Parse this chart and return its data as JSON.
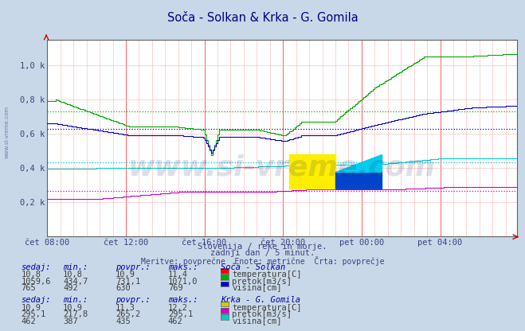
{
  "title": "Soča - Solkan & Krka - G. Gomila",
  "bg_color": "#c8d8e8",
  "plot_bg": "#ffffff",
  "xlabel_color": "#404080",
  "ylabel_color": "#404080",
  "grid_color_minor": "#ffb0b0",
  "grid_color_major": "#ff6060",
  "x_labels": [
    "čet 08:00",
    "čet 12:00",
    "čet 16:00",
    "čet 20:00",
    "pet 00:00",
    "pet 04:00"
  ],
  "x_ticks": [
    0,
    48,
    96,
    144,
    192,
    240
  ],
  "n_points": 288,
  "ylim": [
    0,
    1150
  ],
  "yticks": [
    200,
    400,
    600,
    800,
    1000
  ],
  "ytick_labels": [
    "0,2 k",
    "0,4 k",
    "0,6 k",
    "0,8 k",
    "1,0 k"
  ],
  "subtitle1": "Slovenija / reke in morje.",
  "subtitle2": "zadnji dan / 5 minut.",
  "subtitle3": "Meritve: povprečne  Enote: metrične  Črta: povprečje",
  "footer_color": "#404080",
  "border_color": "#808080",
  "colors": {
    "soca_temp": "#ff0000",
    "soca_pretok": "#00aa00",
    "soca_visina": "#0000cc",
    "krka_temp": "#cccc00",
    "krka_pretok": "#cc00cc",
    "krka_visina": "#00cccc"
  },
  "averages": {
    "soca_pretok": 731.1,
    "soca_visina": 630,
    "krka_pretok": 265.2,
    "krka_visina": 435
  },
  "watermark": "www.si-vreme.com",
  "watermark_color": "#1a2a6c",
  "watermark_alpha": 0.15,
  "soca_header": "Soča - Solkan",
  "krka_header": "Krka - G. Gomila",
  "col_headers": [
    "sedaj:",
    "min.:",
    "povpr.:",
    "maks.:"
  ],
  "soca_rows": [
    [
      "10,8",
      "10,8",
      "10,9",
      "11,4"
    ],
    [
      "1059,6",
      "434,7",
      "731,1",
      "1071,0"
    ],
    [
      "765",
      "492",
      "630",
      "769"
    ]
  ],
  "krka_rows": [
    [
      "10,9",
      "10,9",
      "11,3",
      "12,2"
    ],
    [
      "295,1",
      "217,8",
      "265,2",
      "295,1"
    ],
    [
      "462",
      "387",
      "435",
      "462"
    ]
  ],
  "legend_labels_soca": [
    "temperatura[C]",
    "pretok[m3/s]",
    "višina[cm]"
  ],
  "legend_labels_krka": [
    "temperatura[C]",
    "pretok[m3/s]",
    "višina[cm]"
  ]
}
